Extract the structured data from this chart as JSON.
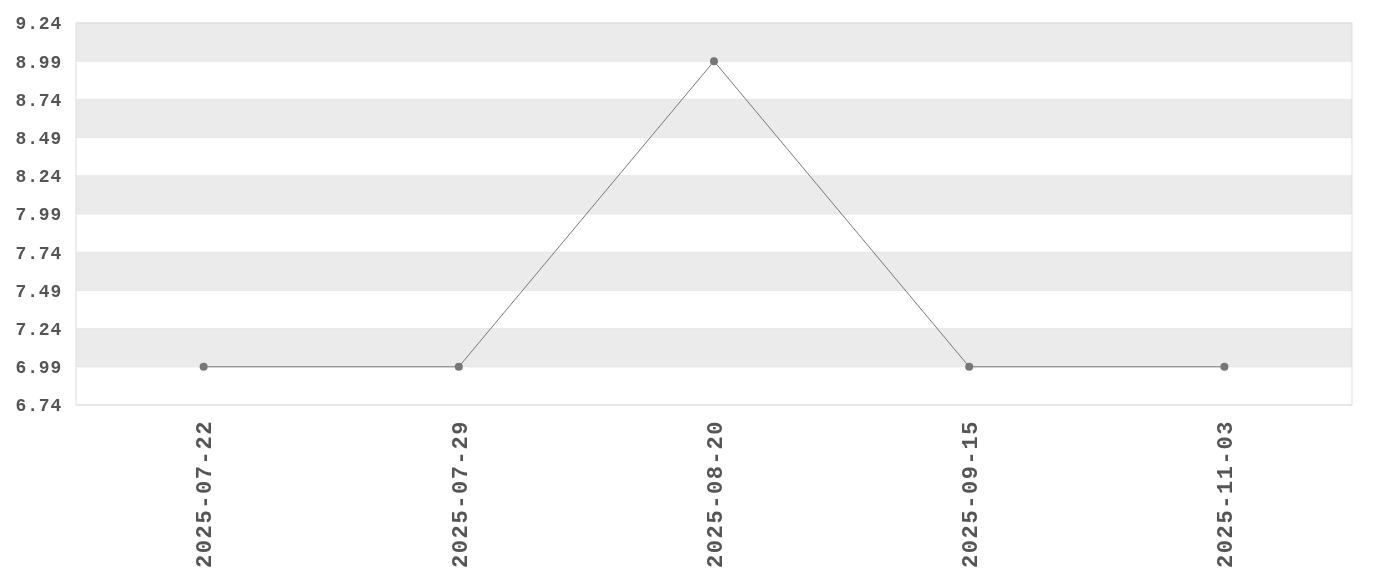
{
  "chart_data": {
    "type": "line",
    "categories": [
      "2025-07-22",
      "2025-07-29",
      "2025-08-20",
      "2025-09-15",
      "2025-11-03"
    ],
    "series": [
      {
        "color": "#777777",
        "values": [
          6.99,
          6.99,
          8.99,
          6.99,
          6.99
        ]
      }
    ],
    "ylim": [
      6.74,
      9.24
    ],
    "yticks": [
      6.74,
      6.99,
      7.24,
      7.49,
      7.74,
      7.99,
      8.24,
      8.49,
      8.74,
      8.99,
      9.24
    ],
    "grid": "y",
    "marker": "circle"
  }
}
